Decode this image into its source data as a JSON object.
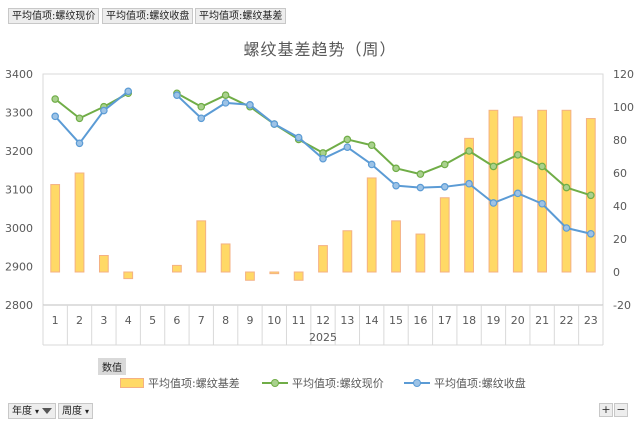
{
  "field_buttons": [
    "平均值项:螺纹现价",
    "平均值项:螺纹收盘",
    "平均值项:螺纹基差"
  ],
  "values_tag": "数值",
  "filters": {
    "year_label": "年度",
    "week_label": "周度"
  },
  "zoom": {
    "plus": "+",
    "minus": "−"
  },
  "icons": {
    "filter": "funnel-icon",
    "dropdown": "chevron-down-icon"
  },
  "chart_data": {
    "type": "bar+line",
    "title": "螺纹基差趋势（周）",
    "categories": [
      "1",
      "2",
      "3",
      "4",
      "5",
      "6",
      "7",
      "8",
      "9",
      "10",
      "11",
      "12",
      "13",
      "14",
      "15",
      "16",
      "17",
      "18",
      "19",
      "20",
      "21",
      "22",
      "23"
    ],
    "group_label": "2025",
    "y_left": {
      "min": 2800,
      "max": 3400,
      "step": 100
    },
    "y_right": {
      "min": -20,
      "max": 120,
      "step": 20
    },
    "grid": false,
    "legend_position": "bottom",
    "series": [
      {
        "name": "平均值项:螺纹基差",
        "type": "bar",
        "axis": "right",
        "color": "#ffd966",
        "edge": "#f4b183",
        "values": [
          53,
          60,
          10,
          -4,
          null,
          4,
          31,
          17,
          -5,
          -1,
          -5,
          16,
          25,
          57,
          31,
          23,
          45,
          81,
          98,
          94,
          98,
          98,
          93
        ]
      },
      {
        "name": "平均值项:螺纹现价",
        "type": "line",
        "axis": "left",
        "color": "#70ad47",
        "values": [
          3335,
          3285,
          3315,
          3350,
          null,
          3350,
          3315,
          3345,
          3315,
          3270,
          3230,
          3195,
          3230,
          3215,
          3155,
          3140,
          3165,
          3200,
          3160,
          3190,
          3160,
          3105,
          3085
        ]
      },
      {
        "name": "平均值项:螺纹收盘",
        "type": "line",
        "axis": "left",
        "color": "#5b9bd5",
        "values": [
          3290,
          3220,
          3305,
          3355,
          null,
          3345,
          3285,
          3325,
          3320,
          3270,
          3235,
          3180,
          3210,
          3165,
          3110,
          3105,
          3107,
          3115,
          3065,
          3090,
          3063,
          3000,
          2985
        ]
      }
    ]
  }
}
